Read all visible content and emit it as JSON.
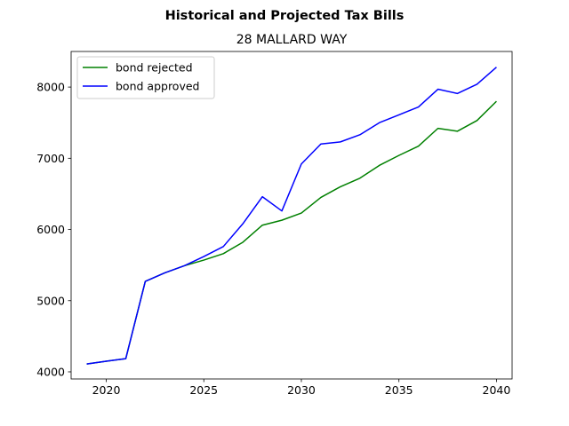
{
  "chart_data": {
    "type": "line",
    "title": "Historical and Projected Tax Bills",
    "subtitle": "28 MALLARD WAY",
    "xlabel": "",
    "ylabel": "",
    "xlim": [
      2018.2,
      2040.8
    ],
    "ylim": [
      3900,
      8500
    ],
    "xticks": [
      2020,
      2025,
      2030,
      2035,
      2040
    ],
    "yticks": [
      4000,
      5000,
      6000,
      7000,
      8000
    ],
    "grid": false,
    "legend_position": "upper left",
    "x": [
      2019,
      2020,
      2021,
      2022,
      2023,
      2024,
      2025,
      2026,
      2027,
      2028,
      2029,
      2030,
      2031,
      2032,
      2033,
      2034,
      2035,
      2036,
      2037,
      2038,
      2039,
      2040
    ],
    "series": [
      {
        "name": "bond rejected",
        "color": "#008000",
        "values": [
          4110,
          4150,
          4185,
          5270,
          5390,
          5490,
          5570,
          5660,
          5820,
          6060,
          6130,
          6230,
          6450,
          6600,
          6720,
          6900,
          7040,
          7170,
          7420,
          7380,
          7530,
          7800
        ]
      },
      {
        "name": "bond approved",
        "color": "#0000ff",
        "values": [
          4110,
          4150,
          4185,
          5270,
          5390,
          5490,
          5620,
          5760,
          6080,
          6460,
          6260,
          6920,
          7200,
          7230,
          7330,
          7500,
          7610,
          7720,
          7970,
          7910,
          8040,
          8280
        ]
      }
    ]
  }
}
